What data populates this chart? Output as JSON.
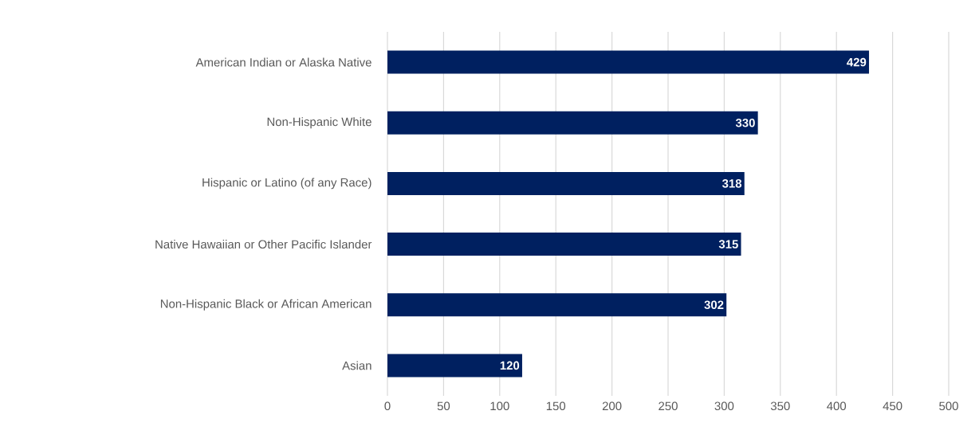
{
  "chart_data": {
    "type": "bar",
    "orientation": "horizontal",
    "categories": [
      "American Indian or Alaska Native",
      "Non-Hispanic White",
      "Hispanic or Latino (of any Race)",
      "Native Hawaiian or Other Pacific Islander",
      "Non-Hispanic Black or African American",
      "Asian"
    ],
    "values": [
      429,
      330,
      318,
      315,
      302,
      120
    ],
    "color": "#002060",
    "xlim": [
      0,
      500
    ],
    "xticks": [
      0,
      50,
      100,
      150,
      200,
      250,
      300,
      350,
      400,
      450,
      500
    ],
    "grid": "x",
    "data_labels": true
  }
}
